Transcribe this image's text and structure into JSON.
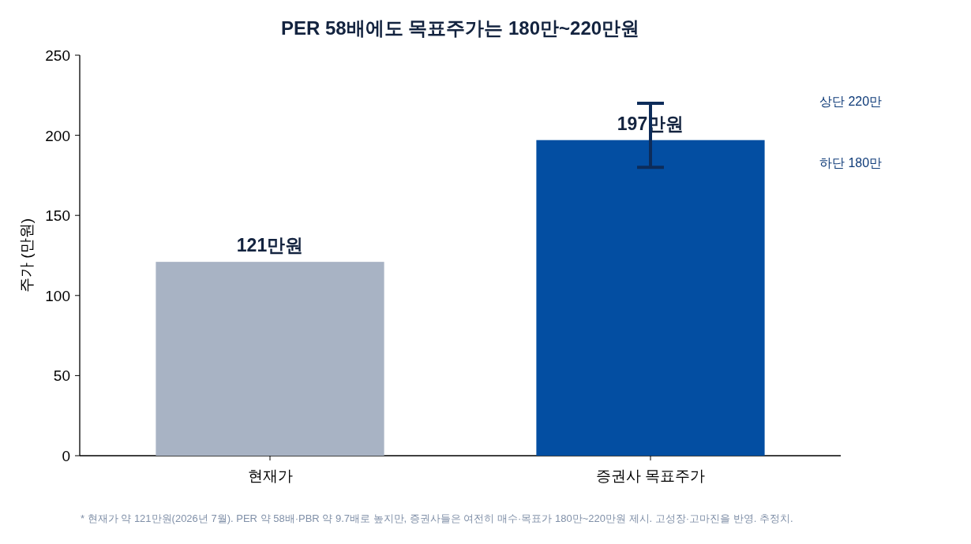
{
  "chart_data": {
    "type": "bar",
    "title": "PER 58배에도 목표주가는 180만~220만원",
    "ylabel": "주가 (만원)",
    "categories": [
      "현재가",
      "증권사 목표주가"
    ],
    "values": [
      121,
      197
    ],
    "colors": [
      "#a8b3c4",
      "#034ea2"
    ],
    "errors": [
      null,
      [
        180,
        220
      ]
    ],
    "value_labels": [
      "121만원",
      "197만원"
    ],
    "ylim": [
      0,
      250
    ],
    "yticks": [
      0,
      50,
      100,
      150,
      200,
      250
    ],
    "grid": false,
    "annotations": [
      "상단 220만",
      "하단 180만",
      "* 현재가 약 121만원(2026년 7월). PER 약 58배·PBR 약 9.7배로 높지만, 증권사들은 여전히 매수·목표가 180만~220만원 제시. 고성장·고마진을 반영. 추정치."
    ]
  }
}
